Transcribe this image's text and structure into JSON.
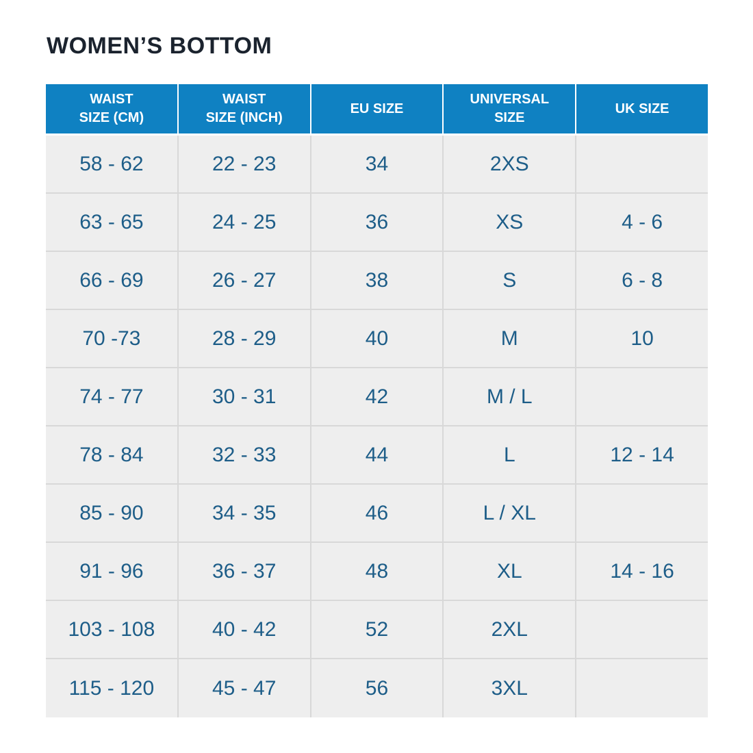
{
  "page": {
    "title": "WOMEN’S BOTTOM"
  },
  "colors": {
    "header_bg": "#0f81c2",
    "header_text": "#ffffff",
    "cell_bg": "#eeeeee",
    "cell_text": "#1d5d88",
    "divider": "#d8d8d8",
    "title_text": "#1b232e"
  },
  "table": {
    "headers": [
      "WAIST\nSIZE (CM)",
      "WAIST\nSIZE (INCH)",
      "EU SIZE",
      "UNIVERSAL\nSIZE",
      "UK SIZE"
    ],
    "rows": [
      [
        "58 - 62",
        "22 - 23",
        "34",
        "2XS",
        ""
      ],
      [
        "63 - 65",
        "24 - 25",
        "36",
        "XS",
        "4 - 6"
      ],
      [
        "66 - 69",
        "26 - 27",
        "38",
        "S",
        "6 - 8"
      ],
      [
        "70 -73",
        "28 - 29",
        "40",
        "M",
        "10"
      ],
      [
        "74 - 77",
        "30 - 31",
        "42",
        "M / L",
        ""
      ],
      [
        "78 - 84",
        "32 - 33",
        "44",
        "L",
        "12 - 14"
      ],
      [
        "85 - 90",
        "34 - 35",
        "46",
        "L / XL",
        ""
      ],
      [
        "91 - 96",
        "36 - 37",
        "48",
        "XL",
        "14 - 16"
      ],
      [
        "103 - 108",
        "40 - 42",
        "52",
        "2XL",
        ""
      ],
      [
        "115 - 120",
        "45 - 47",
        "56",
        "3XL",
        ""
      ]
    ]
  }
}
